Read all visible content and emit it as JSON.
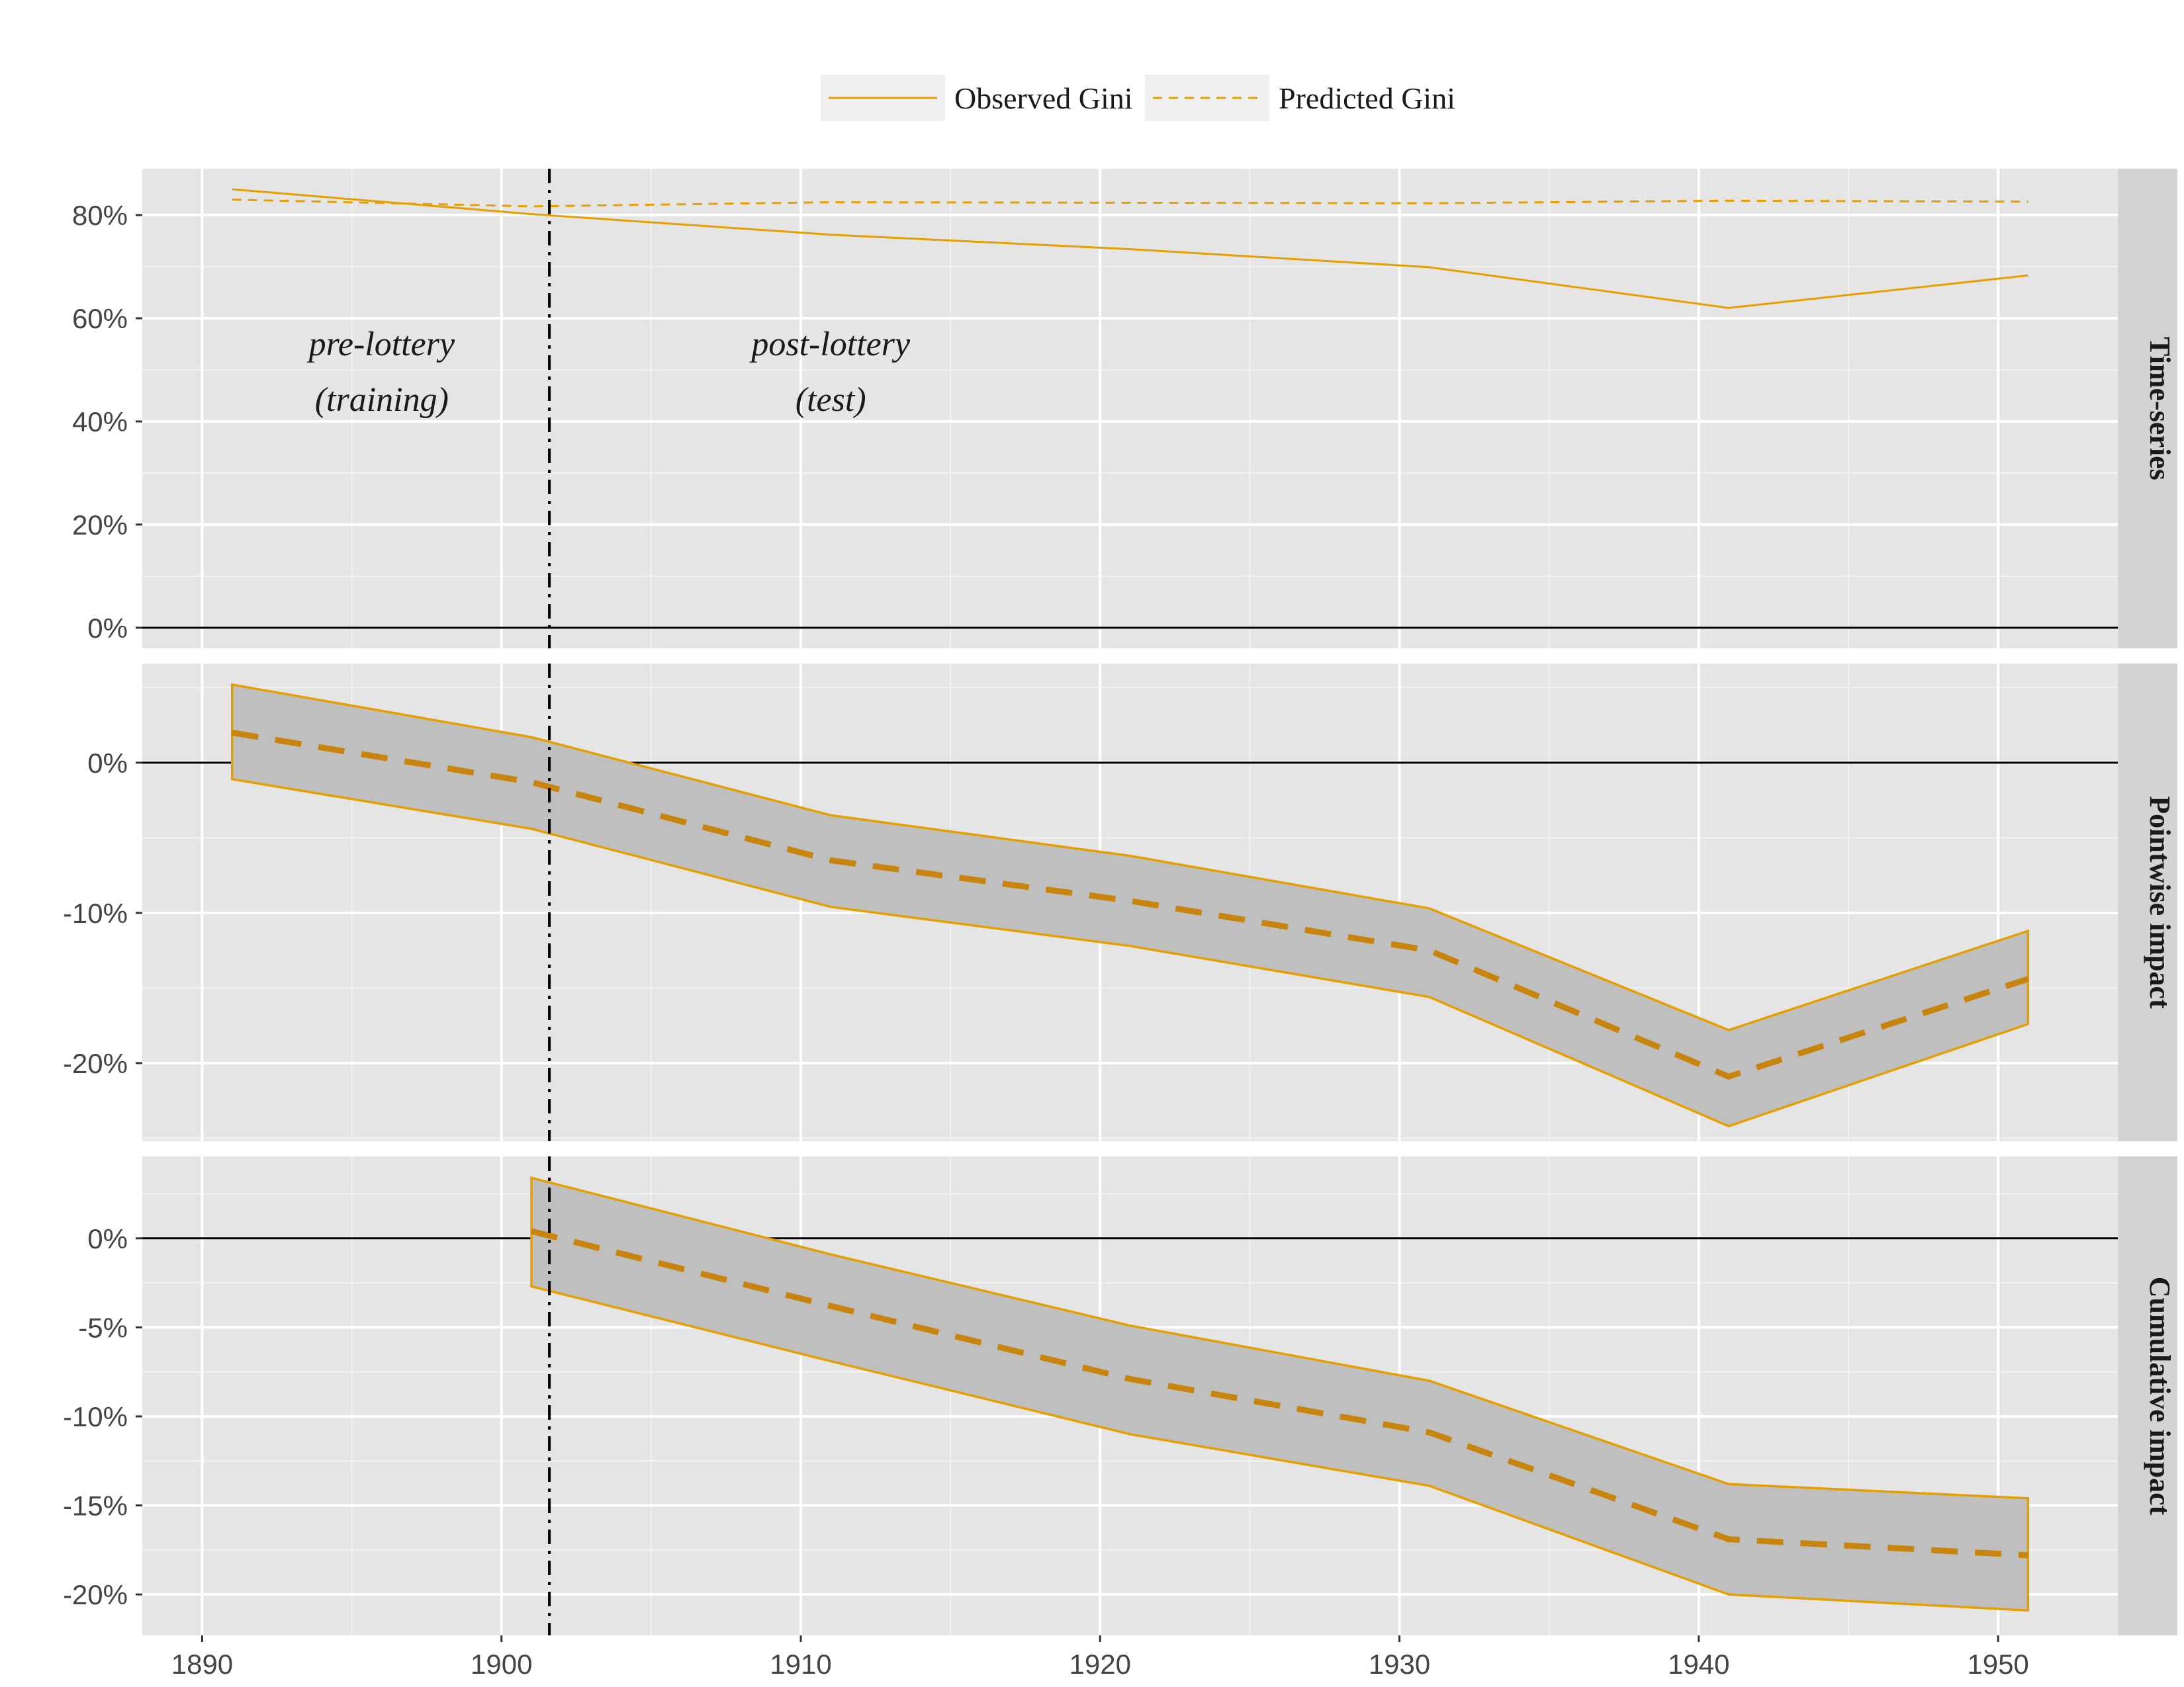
{
  "chart_data": {
    "type": "line",
    "x_ticks": [
      1890,
      1900,
      1910,
      1920,
      1930,
      1940,
      1950
    ],
    "xlim": [
      1888,
      1954
    ],
    "intervention_year": 1901.6,
    "legend": {
      "placement": "top",
      "items": [
        {
          "label": "Observed Gini",
          "style": "solid"
        },
        {
          "label": "Predicted Gini",
          "style": "dashed"
        }
      ]
    },
    "annotations": [
      {
        "x": 1896,
        "lines": [
          "pre-lottery",
          "(training)"
        ]
      },
      {
        "x": 1911,
        "lines": [
          "post-lottery",
          "(test)"
        ]
      }
    ],
    "colors": {
      "series": "#E69F00",
      "series_dark": "#C8850E",
      "panel_bg": "#E5E5E5",
      "strip_bg": "#D3D3D3",
      "band_fill": "#BFBFBF"
    },
    "panels": [
      {
        "id": "time-series",
        "strip": "Time-series",
        "ylim": [
          -4,
          89
        ],
        "y_ticks": [
          0,
          20,
          40,
          60,
          80
        ],
        "y_tick_labels": [
          "0%",
          "20%",
          "40%",
          "60%",
          "80%"
        ],
        "x": [
          1891,
          1901,
          1911,
          1921,
          1931,
          1941,
          1951
        ],
        "series": [
          {
            "name": "Observed Gini",
            "style": "solid",
            "values": [
              85,
              80.2,
              76.2,
              73.4,
              69.9,
              62.0,
              68.3
            ]
          },
          {
            "name": "Predicted Gini",
            "style": "dashed",
            "values": [
              83.0,
              81.7,
              82.5,
              82.4,
              82.3,
              82.8,
              82.6
            ]
          }
        ]
      },
      {
        "id": "pointwise-impact",
        "strip": "Pointwise impact",
        "ylim": [
          -25.2,
          6.6
        ],
        "y_ticks": [
          -20,
          -10,
          0
        ],
        "y_tick_labels": [
          "-20%",
          "-10%",
          "0%"
        ],
        "x": [
          1891,
          1901,
          1911,
          1921,
          1931,
          1941,
          1951
        ],
        "mean": [
          2.0,
          -1.3,
          -6.5,
          -9.2,
          -12.5,
          -20.9,
          -14.4
        ],
        "upper": [
          5.2,
          1.7,
          -3.5,
          -6.2,
          -9.7,
          -17.8,
          -11.2
        ],
        "lower": [
          -1.1,
          -4.4,
          -9.6,
          -12.2,
          -15.6,
          -24.2,
          -17.4
        ]
      },
      {
        "id": "cumulative-impact",
        "strip": "Cumulative impact",
        "ylim": [
          -22.3,
          4.6
        ],
        "y_ticks": [
          -20,
          -15,
          -10,
          -5,
          0
        ],
        "y_tick_labels": [
          "-20%",
          "-15%",
          "-10%",
          "-5%",
          "0%"
        ],
        "x": [
          1901,
          1911,
          1921,
          1931,
          1941,
          1951
        ],
        "mean": [
          0.4,
          -3.8,
          -7.9,
          -10.9,
          -16.9,
          -17.8
        ],
        "upper": [
          3.4,
          -0.9,
          -4.9,
          -8.0,
          -13.8,
          -14.6
        ],
        "lower": [
          -2.7,
          -6.9,
          -11.0,
          -13.9,
          -20.0,
          -20.9
        ]
      }
    ]
  }
}
